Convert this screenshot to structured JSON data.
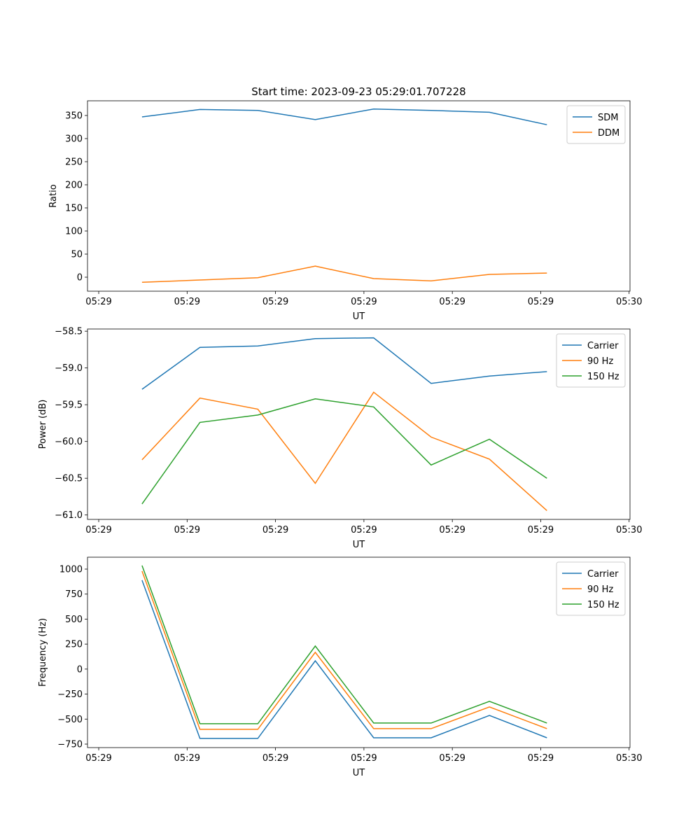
{
  "chart_data": [
    {
      "type": "line",
      "title": "Start time: 2023-09-23 05:29:01.707228",
      "xlabel": "UT",
      "ylabel": "Ratio",
      "x_units": "seconds after 05:29:00",
      "x": [
        4.9,
        11.45,
        18.0,
        24.5,
        31.1,
        37.6,
        44.2,
        50.7
      ],
      "xlim": [
        -1.27,
        60.1
      ],
      "xticks": [
        0,
        10,
        20,
        30,
        40,
        50,
        60
      ],
      "xtick_labels": [
        "05:29",
        "05:29",
        "05:29",
        "05:29",
        "05:29",
        "05:29",
        "05:30"
      ],
      "ylim": [
        -30.3,
        381.8
      ],
      "yticks": [
        0,
        50,
        100,
        150,
        200,
        250,
        300,
        350
      ],
      "ytick_labels": [
        "0",
        "50",
        "100",
        "150",
        "200",
        "250",
        "300",
        "350"
      ],
      "legend": "top-right",
      "series": [
        {
          "name": "SDM",
          "color": "#1f77b4",
          "values": [
            347,
            363,
            361,
            341,
            364,
            361,
            357,
            330
          ]
        },
        {
          "name": "DDM",
          "color": "#ff7f0e",
          "values": [
            -11,
            -6,
            -1,
            24,
            -3,
            -8,
            6,
            9
          ]
        }
      ]
    },
    {
      "type": "line",
      "title": "",
      "xlabel": "UT",
      "ylabel": "Power (dB)",
      "x_units": "seconds after 05:29:00",
      "x": [
        4.9,
        11.45,
        18.0,
        24.5,
        31.1,
        37.6,
        44.2,
        50.7
      ],
      "xlim": [
        -1.27,
        60.1
      ],
      "xticks": [
        0,
        10,
        20,
        30,
        40,
        50,
        60
      ],
      "xtick_labels": [
        "05:29",
        "05:29",
        "05:29",
        "05:29",
        "05:29",
        "05:29",
        "05:30"
      ],
      "ylim": [
        -61.06,
        -58.47
      ],
      "yticks": [
        -61.0,
        -60.5,
        -60.0,
        -59.5,
        -59.0,
        -58.5
      ],
      "ytick_labels": [
        "−61.0",
        "−60.5",
        "−60.0",
        "−59.5",
        "−59.0",
        "−58.5"
      ],
      "legend": "top-right",
      "series": [
        {
          "name": "Carrier",
          "color": "#1f77b4",
          "values": [
            -59.29,
            -58.72,
            -58.7,
            -58.6,
            -58.59,
            -59.21,
            -59.11,
            -59.05
          ]
        },
        {
          "name": "90 Hz",
          "color": "#ff7f0e",
          "values": [
            -60.25,
            -59.41,
            -59.56,
            -60.57,
            -59.33,
            -59.94,
            -60.24,
            -60.94
          ]
        },
        {
          "name": "150 Hz",
          "color": "#2ca02c",
          "values": [
            -60.85,
            -59.74,
            -59.64,
            -59.42,
            -59.53,
            -60.32,
            -59.97,
            -60.5
          ]
        }
      ]
    },
    {
      "type": "line",
      "title": "",
      "xlabel": "UT",
      "ylabel": "Frequency (Hz)",
      "x_units": "seconds after 05:29:00",
      "x": [
        4.9,
        11.45,
        18.0,
        24.5,
        31.1,
        37.6,
        44.2,
        50.7
      ],
      "xlim": [
        -1.27,
        60.1
      ],
      "xticks": [
        0,
        10,
        20,
        30,
        40,
        50,
        60
      ],
      "xtick_labels": [
        "05:29",
        "05:29",
        "05:29",
        "05:29",
        "05:29",
        "05:29",
        "05:30"
      ],
      "ylim": [
        -785,
        1119
      ],
      "yticks": [
        -750,
        -500,
        -250,
        0,
        250,
        500,
        750,
        1000
      ],
      "ytick_labels": [
        "−750",
        "−500",
        "−250",
        "0",
        "250",
        "500",
        "750",
        "1000"
      ],
      "legend": "top-right",
      "series": [
        {
          "name": "Carrier",
          "color": "#1f77b4",
          "values": [
            889,
            -693,
            -693,
            83,
            -687,
            -687,
            -463,
            -687
          ]
        },
        {
          "name": "90 Hz",
          "color": "#ff7f0e",
          "values": [
            980,
            -602,
            -602,
            168,
            -595,
            -595,
            -378,
            -595
          ]
        },
        {
          "name": "150 Hz",
          "color": "#2ca02c",
          "values": [
            1036,
            -546,
            -546,
            231,
            -539,
            -539,
            -322,
            -539
          ]
        }
      ]
    }
  ]
}
